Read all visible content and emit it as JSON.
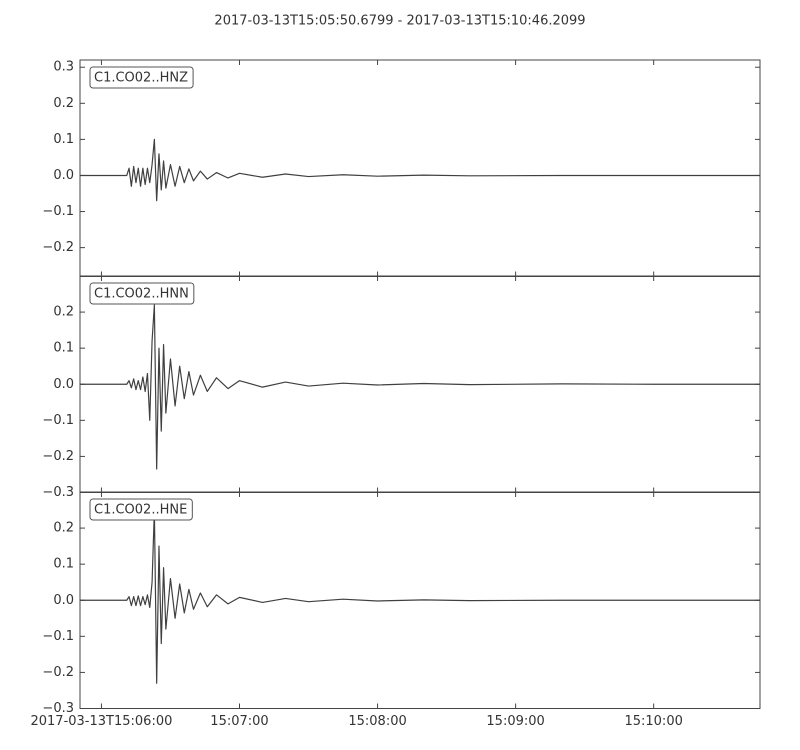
{
  "title": "2017-03-13T15:05:50.6799  -  2017-03-13T15:10:46.2099",
  "chart_data": [
    {
      "type": "line",
      "label": "C1.CO02..HNZ",
      "color": "#404040",
      "x": [
        350.68,
        371,
        372,
        373,
        374,
        375,
        376,
        377,
        378,
        379,
        380,
        381,
        382,
        383,
        384,
        385,
        386,
        387,
        388,
        390,
        392,
        394,
        396,
        398,
        400,
        403,
        406,
        410,
        415,
        420,
        430,
        440,
        450,
        465,
        480,
        500,
        520,
        560,
        600,
        646.21
      ],
      "values": [
        0,
        0,
        0.02,
        -0.03,
        0.025,
        -0.02,
        0.02,
        -0.03,
        0.02,
        -0.025,
        0.02,
        -0.02,
        0.03,
        0.1,
        -0.07,
        0.06,
        -0.04,
        0.04,
        -0.035,
        0.03,
        -0.03,
        0.025,
        -0.02,
        0.018,
        -0.015,
        0.012,
        -0.01,
        0.008,
        -0.007,
        0.006,
        -0.005,
        0.004,
        -0.003,
        0.002,
        -0.002,
        0.001,
        -0.001,
        0,
        0,
        0
      ],
      "xlim": [
        350.68,
        646.21
      ],
      "xticks": [
        360,
        420,
        480,
        540,
        600
      ],
      "ylim": [
        -0.28,
        0.32
      ],
      "yticks": [
        {
          "value": -0.2,
          "label": "−0.2"
        },
        {
          "value": -0.1,
          "label": "−0.1"
        },
        {
          "value": 0,
          "label": "0.0"
        },
        0.1,
        0.2,
        0.3
      ]
    },
    {
      "type": "line",
      "label": "C1.CO02..HNN",
      "color": "#404040",
      "x": [
        350.68,
        371,
        372,
        373,
        374,
        375,
        376,
        377,
        378,
        379,
        380,
        381,
        382,
        383,
        384,
        385,
        386,
        387,
        388,
        390,
        392,
        394,
        396,
        398,
        400,
        403,
        406,
        410,
        415,
        420,
        430,
        440,
        450,
        465,
        480,
        500,
        520,
        560,
        600,
        646.21
      ],
      "values": [
        0,
        0,
        0.01,
        -0.01,
        0.015,
        -0.015,
        0.01,
        -0.015,
        0.02,
        -0.02,
        0.03,
        -0.1,
        0.12,
        0.22,
        -0.235,
        0.1,
        -0.13,
        0.11,
        -0.08,
        0.07,
        -0.06,
        0.05,
        -0.04,
        0.035,
        -0.03,
        0.025,
        -0.02,
        0.018,
        -0.012,
        0.01,
        -0.008,
        0.006,
        -0.005,
        0.003,
        -0.002,
        0.002,
        -0.001,
        0.001,
        0,
        0
      ],
      "xlim": [
        350.68,
        646.21
      ],
      "xticks": [
        360,
        420,
        480,
        540,
        600
      ],
      "ylim": [
        -0.3,
        0.3
      ],
      "yticks": [
        {
          "value": -0.3,
          "label": "−0.3"
        },
        {
          "value": -0.2,
          "label": "−0.2"
        },
        {
          "value": -0.1,
          "label": "−0.1"
        },
        {
          "value": 0,
          "label": "0.0"
        },
        0.1,
        0.2
      ]
    },
    {
      "type": "line",
      "label": "C1.CO02..HNE",
      "color": "#404040",
      "x": [
        350.68,
        371,
        372,
        373,
        374,
        375,
        376,
        377,
        378,
        379,
        380,
        381,
        382,
        383,
        384,
        385,
        386,
        387,
        388,
        390,
        392,
        394,
        396,
        398,
        400,
        403,
        406,
        410,
        415,
        420,
        430,
        440,
        450,
        465,
        480,
        500,
        520,
        560,
        600,
        646.21
      ],
      "values": [
        0,
        0,
        0.01,
        -0.015,
        0.01,
        -0.015,
        0.012,
        -0.015,
        0.01,
        -0.012,
        0.015,
        -0.02,
        0.05,
        0.25,
        -0.23,
        0.15,
        -0.12,
        0.09,
        -0.08,
        0.06,
        -0.05,
        0.045,
        -0.035,
        0.03,
        -0.025,
        0.02,
        -0.018,
        0.015,
        -0.01,
        0.008,
        -0.006,
        0.005,
        -0.004,
        0.003,
        -0.002,
        0.001,
        -0.001,
        0,
        0,
        0
      ],
      "xlim": [
        350.68,
        646.21
      ],
      "xticks": [
        {
          "value": 360,
          "label": "2017-03-13T15:06:00"
        },
        {
          "value": 420,
          "label": "15:07:00"
        },
        {
          "value": 480,
          "label": "15:08:00"
        },
        {
          "value": 540,
          "label": "15:09:00"
        },
        {
          "value": 600,
          "label": "15:10:00"
        }
      ],
      "ylim": [
        -0.3,
        0.3
      ],
      "yticks": [
        {
          "value": -0.3,
          "label": "−0.3"
        },
        {
          "value": -0.2,
          "label": "−0.2"
        },
        {
          "value": -0.1,
          "label": "−0.1"
        },
        {
          "value": 0,
          "label": "0.0"
        },
        0.1,
        0.2
      ]
    }
  ]
}
